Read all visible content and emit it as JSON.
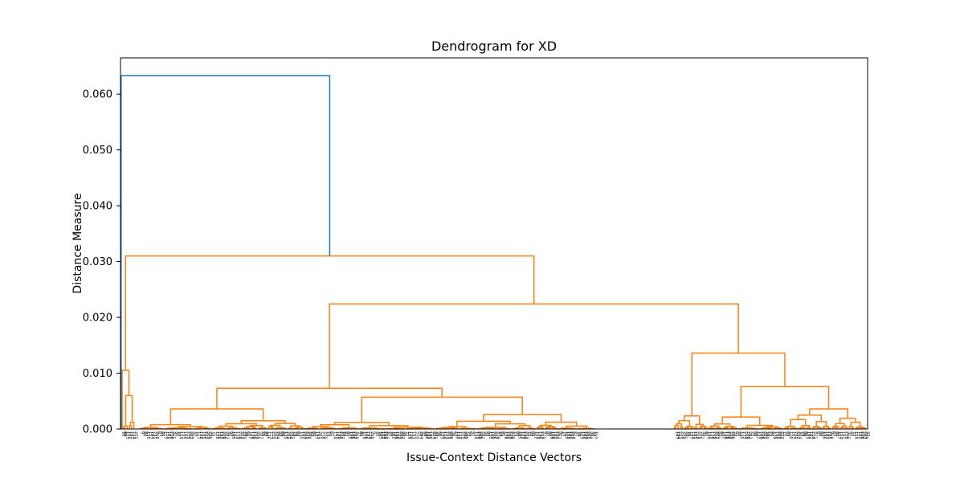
{
  "chart_data": {
    "type": "dendrogram",
    "title": "Dendrogram for XD",
    "xlabel": "Issue-Context Distance Vectors",
    "ylabel": "Distance Measure",
    "ylim": [
      0,
      0.0665
    ],
    "yticks": [
      0.0,
      0.01,
      0.02,
      0.03,
      0.04,
      0.05,
      0.06
    ],
    "ytick_labels": [
      "0.000",
      "0.010",
      "0.020",
      "0.030",
      "0.040",
      "0.050",
      "0.060"
    ],
    "grid": false,
    "colors": {
      "root_link": "#1f77b4",
      "cluster_links": "#ff7f0e",
      "axes": "#000000"
    },
    "merges": [
      {
        "name": "root",
        "height": 0.0633,
        "color": "#1f77b4"
      },
      {
        "name": "main-cluster",
        "height": 0.031,
        "color": "#ff7f0e"
      },
      {
        "name": "left-small-cluster",
        "height": 0.0105,
        "color": "#ff7f0e"
      },
      {
        "name": "right-major",
        "height": 0.0224,
        "color": "#ff7f0e"
      },
      {
        "name": "middle-block",
        "height": 0.0073,
        "color": "#ff7f0e"
      },
      {
        "name": "right-block",
        "height": 0.0136,
        "color": "#ff7f0e"
      },
      {
        "name": "right-sub-block",
        "height": 0.0076,
        "color": "#ff7f0e"
      },
      {
        "name": "middle-left",
        "height": 0.0036,
        "color": "#ff7f0e"
      },
      {
        "name": "middle-right",
        "height": 0.0057,
        "color": "#ff7f0e"
      }
    ]
  }
}
